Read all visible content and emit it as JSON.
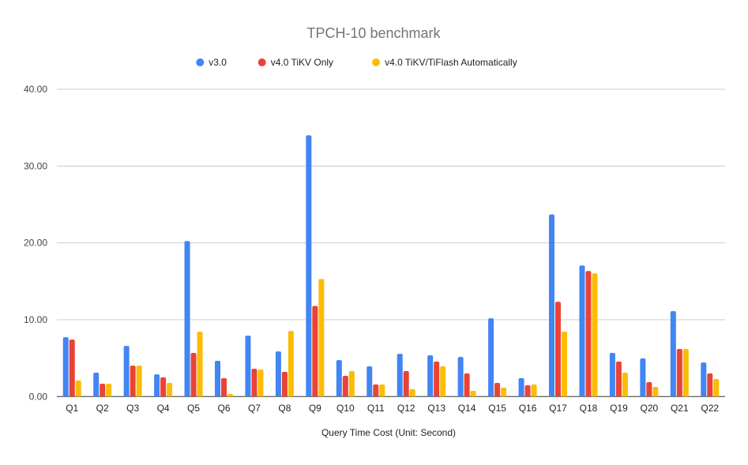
{
  "chart_data": {
    "type": "bar",
    "title": "TPCH-10 benchmark",
    "xlabel": "Query Time Cost (Unit: Second)",
    "ylabel": "",
    "ylim": [
      0,
      40
    ],
    "yticks": [
      "0.00",
      "10.00",
      "20.00",
      "30.00",
      "40.00"
    ],
    "grid": true,
    "legend_position": "top",
    "categories": [
      "Q1",
      "Q2",
      "Q3",
      "Q4",
      "Q5",
      "Q6",
      "Q7",
      "Q8",
      "Q9",
      "Q10",
      "Q11",
      "Q12",
      "Q13",
      "Q14",
      "Q15",
      "Q16",
      "Q17",
      "Q18",
      "Q19",
      "Q20",
      "Q21",
      "Q22"
    ],
    "series": [
      {
        "name": "v3.0",
        "color": "#4285f4",
        "values": [
          7.73,
          3.11,
          6.6,
          2.9,
          20.24,
          4.65,
          7.93,
          5.88,
          34.0,
          4.75,
          3.93,
          5.57,
          5.37,
          5.16,
          10.19,
          2.39,
          23.7,
          17.06,
          5.68,
          4.96,
          11.11,
          4.44
        ]
      },
      {
        "name": "v4.0 TiKV Only",
        "color": "#ea4335",
        "values": [
          7.42,
          1.68,
          4.03,
          2.5,
          5.68,
          2.39,
          3.62,
          3.21,
          11.8,
          2.7,
          1.57,
          3.32,
          4.55,
          3.01,
          1.78,
          1.47,
          12.34,
          16.34,
          4.55,
          1.88,
          6.19,
          3.01
        ]
      },
      {
        "name": "v4.0 TiKV/TiFlash Automatically",
        "color": "#fbbc04",
        "values": [
          2.09,
          1.68,
          4.03,
          1.78,
          8.44,
          0.34,
          3.52,
          8.55,
          15.3,
          3.32,
          1.57,
          0.96,
          3.93,
          0.75,
          1.16,
          1.57,
          8.44,
          16.03,
          3.11,
          1.26,
          6.19,
          2.29
        ]
      }
    ]
  }
}
